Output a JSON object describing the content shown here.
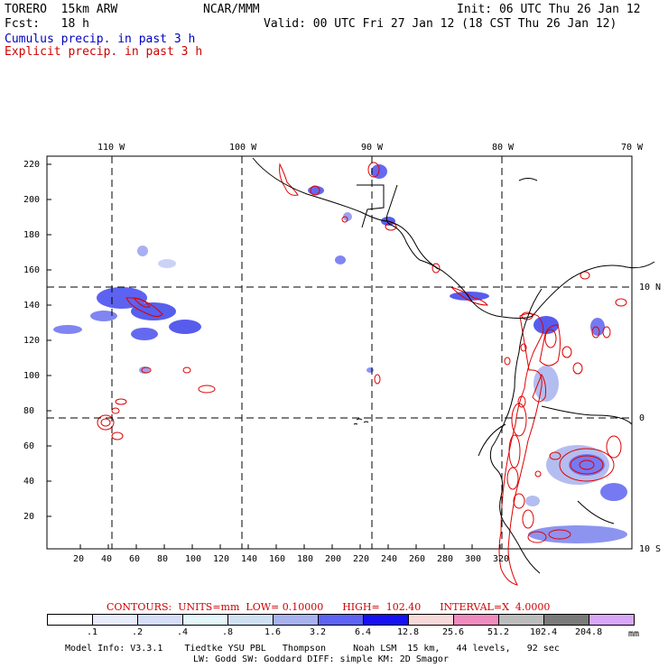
{
  "header": {
    "model": "TORERO  15km ARW",
    "org": "NCAR/MMM",
    "init": "Init: 06 UTC Thu 26 Jan 12",
    "fcst": "Fcst:   18 h",
    "valid": "Valid: 00 UTC Fri 27 Jan 12 (18 CST Thu 26 Jan 12)",
    "legend_cumulus": "Cumulus precip. in past 3 h",
    "legend_explicit": "Explicit precip. in past 3 h"
  },
  "map": {
    "top_lon_labels": [
      "110 W",
      "100 W",
      "90 W",
      "80 W",
      "70 W"
    ],
    "right_lat_labels": [
      "10 N",
      "0",
      "10 S"
    ],
    "y_ticks": [
      "220",
      "200",
      "180",
      "160",
      "140",
      "120",
      "100",
      "80",
      "60",
      "40",
      "20"
    ],
    "x_ticks": [
      "20",
      "40",
      "60",
      "80",
      "100",
      "120",
      "140",
      "160",
      "180",
      "200",
      "220",
      "240",
      "260",
      "280",
      "300",
      "320"
    ],
    "colors": {
      "coast": "#000000",
      "contour": "#e00000",
      "grid": "#000000"
    }
  },
  "contours_info": {
    "text": "CONTOURS:  UNITS=mm  LOW= 0.10000      HIGH=  102.40      INTERVAL=X  4.0000"
  },
  "colorbar": {
    "labels": [
      ".1",
      ".2",
      ".4",
      ".8",
      "1.6",
      "3.2",
      "6.4",
      "12.8",
      "25.6",
      "51.2",
      "102.4",
      "204.8"
    ],
    "unit": "mm",
    "colors": [
      "#ffffff",
      "#e8ecfb",
      "#d6ddf7",
      "#e4f6f9",
      "#cfe0f3",
      "#a7b2ee",
      "#5d63f2",
      "#1610f2",
      "#f6d9d9",
      "#f08bbf",
      "#bcbcbc",
      "#7a7a7a",
      "#d8a6f6"
    ]
  },
  "footer": {
    "line1": "Model Info: V3.3.1    Tiedtke YSU PBL   Thompson     Noah LSM  15 km,   44 levels,   92 sec",
    "line2": "LW: Godd SW: Goddard DIFF: simple KM: 2D Smagor"
  }
}
